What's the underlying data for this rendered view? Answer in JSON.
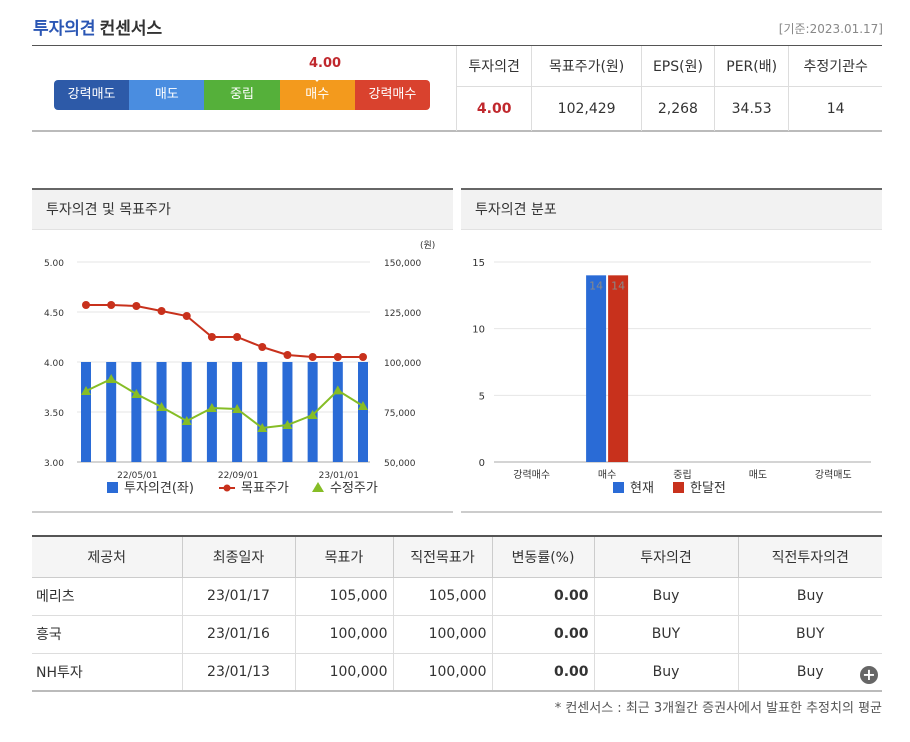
{
  "header": {
    "title_accent": "투자의견",
    "title_rest": "컨센서스",
    "date": "[기준:2023.01.17]"
  },
  "scale": {
    "labels": [
      "강력매도",
      "매도",
      "중립",
      "매수",
      "강력매수"
    ],
    "value": "4.00"
  },
  "summary": {
    "headers": [
      "투자의견",
      "목표주가(원)",
      "EPS(원)",
      "PER(배)",
      "추정기관수"
    ],
    "values": [
      "4.00",
      "102,429",
      "2,268",
      "34.53",
      "14"
    ]
  },
  "chart_left": {
    "title": "투자의견 및 목표주가",
    "y2_unit": "(원)",
    "legend": [
      "투자의견(좌)",
      "목표주가",
      "수정주가"
    ],
    "colors": {
      "bar": "#2a6bd6",
      "target": "#c8311c",
      "price": "#86bd26"
    }
  },
  "chart_right": {
    "title": "투자의견 분포",
    "legend": [
      "현재",
      "한달전"
    ],
    "colors": {
      "current": "#2a6bd6",
      "prev": "#c8311c"
    }
  },
  "chart_data": [
    {
      "type": "bar+line",
      "title": "투자의견 및 목표주가",
      "x_ticks": [
        "22/05/01",
        "22/09/01",
        "23/01/01"
      ],
      "y_left": {
        "min": 3.0,
        "max": 5.0,
        "ticks": [
          "3.00",
          "3.50",
          "4.00",
          "4.50",
          "5.00"
        ]
      },
      "y_right": {
        "min": 50000,
        "max": 150000,
        "ticks": [
          "50,000",
          "75,000",
          "100,000",
          "125,000",
          "150,000"
        ]
      },
      "series": [
        {
          "name": "투자의견(좌)",
          "kind": "bar",
          "axis": "left",
          "values": [
            4.0,
            4.0,
            4.0,
            4.0,
            4.0,
            4.0,
            4.0,
            4.0,
            4.0,
            4.0,
            4.0,
            4.0
          ]
        },
        {
          "name": "목표주가",
          "kind": "line",
          "axis": "right",
          "values": [
            128500,
            128500,
            128000,
            125500,
            123000,
            112500,
            112500,
            107500,
            103500,
            102500,
            102500,
            102500
          ]
        },
        {
          "name": "수정주가",
          "kind": "line",
          "axis": "right",
          "values": [
            85500,
            91500,
            84000,
            77500,
            70500,
            77000,
            76500,
            67000,
            68500,
            73500,
            85800,
            78000
          ]
        }
      ]
    },
    {
      "type": "bar",
      "title": "투자의견 분포",
      "categories": [
        "강력매수",
        "매수",
        "중립",
        "매도",
        "강력매도"
      ],
      "y_range": [
        0,
        15
      ],
      "y_ticks": [
        "0",
        "5",
        "10",
        "15"
      ],
      "series": [
        {
          "name": "현재",
          "values": [
            0,
            14,
            0,
            0,
            0
          ]
        },
        {
          "name": "한달전",
          "values": [
            0,
            14,
            0,
            0,
            0
          ]
        }
      ]
    }
  ],
  "detail": {
    "headers": [
      "제공처",
      "최종일자",
      "목표가",
      "직전목표가",
      "변동률(%)",
      "투자의견",
      "직전투자의견"
    ],
    "rows": [
      [
        "메리츠",
        "23/01/17",
        "105,000",
        "105,000",
        "0.00",
        "Buy",
        "Buy"
      ],
      [
        "흥국",
        "23/01/16",
        "100,000",
        "100,000",
        "0.00",
        "BUY",
        "BUY"
      ],
      [
        "NH투자",
        "23/01/13",
        "100,000",
        "100,000",
        "0.00",
        "Buy",
        "Buy"
      ]
    ]
  },
  "footnote": "* 컨센서스 : 최근 3개월간 증권사에서 발표한 추정치의 평균"
}
